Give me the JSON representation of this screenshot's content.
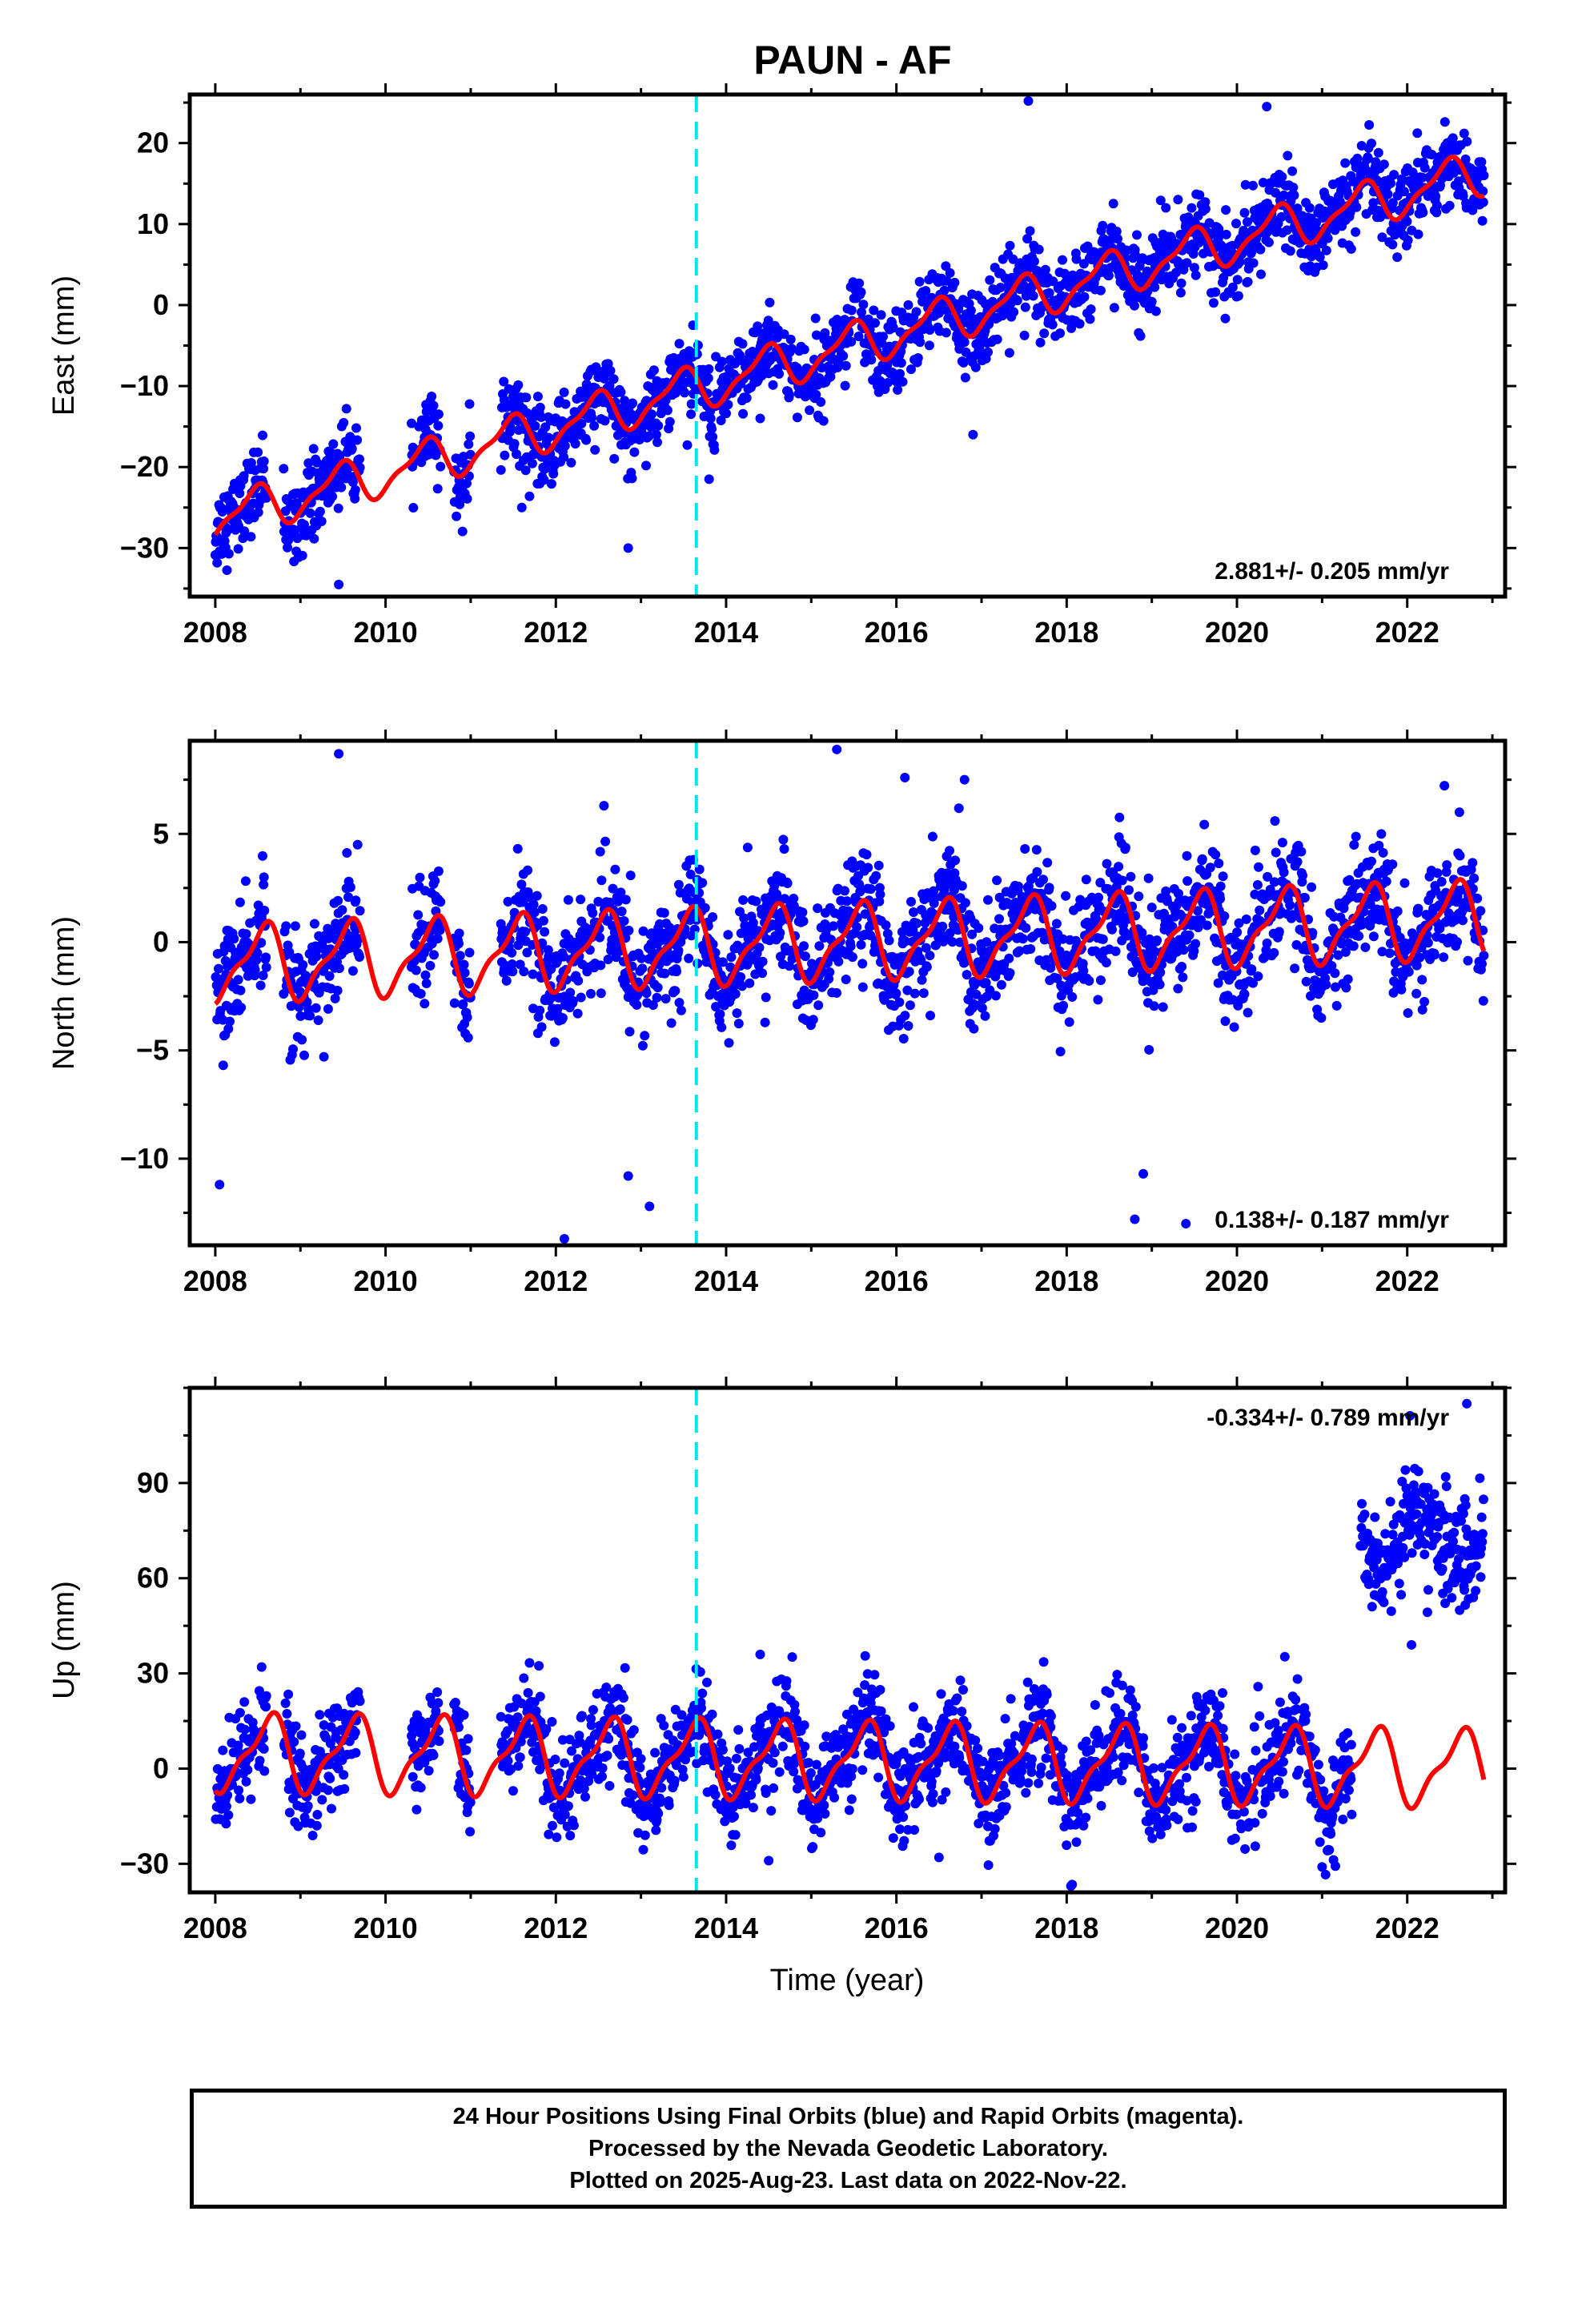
{
  "title": "PAUN - AF",
  "colors": {
    "data": "#0000ff",
    "model": "#ff0000",
    "event_line": "#00e5ee",
    "axes": "#000000"
  },
  "chart_data": [
    {
      "type": "scatter",
      "panel": "east",
      "ylabel": "East (mm)",
      "xlabel": "",
      "xlim": [
        2007.7,
        2023.15
      ],
      "ylim": [
        -36,
        26
      ],
      "xticks": [
        2008,
        2010,
        2012,
        2014,
        2016,
        2018,
        2020,
        2022
      ],
      "yticks": [
        -30,
        -20,
        -10,
        0,
        10,
        20
      ],
      "rate_label": "2.881+/- 0.205 mm/yr",
      "rate_label_position": "bottom-right",
      "event_line_x": 2013.65,
      "trend": {
        "t0": 2008.0,
        "y0": -26.5,
        "rate": 2.881
      },
      "seasonal": {
        "amplitude": 2.5,
        "phase_year": 0.45
      },
      "data_gaps": [
        [
          2008.6,
          2008.8
        ],
        [
          2009.7,
          2010.3
        ],
        [
          2010.65,
          2010.8
        ],
        [
          2011.0,
          2011.35
        ]
      ],
      "series": [
        {
          "name": "",
          "kind": "points",
          "x_start": 2008.0,
          "x_end": 2022.9,
          "scatter_mm": 2.4
        },
        {
          "name": "",
          "kind": "model_curve"
        }
      ],
      "outliers": [
        [
          2009.45,
          -34.5
        ],
        [
          2012.85,
          -30.0
        ],
        [
          2017.55,
          25.2
        ],
        [
          2020.35,
          24.5
        ],
        [
          2013.8,
          -21.5
        ],
        [
          2014.4,
          -14
        ],
        [
          2016.9,
          -16
        ],
        [
          2011.6,
          -25
        ]
      ]
    },
    {
      "type": "scatter",
      "panel": "north",
      "ylabel": "North (mm)",
      "xlabel": "",
      "xlim": [
        2007.7,
        2023.15
      ],
      "ylim": [
        -14,
        9.3
      ],
      "xticks": [
        2008,
        2010,
        2012,
        2014,
        2016,
        2018,
        2020,
        2022
      ],
      "yticks": [
        -10,
        -5,
        0,
        5
      ],
      "rate_label": "0.138+/- 0.187 mm/yr",
      "rate_label_position": "bottom-right",
      "event_line_x": 2013.65,
      "trend": {
        "t0": 2008.0,
        "y0": -1.0,
        "rate": 0.138
      },
      "seasonal": {
        "amplitude": 1.6,
        "phase_year": 0.55
      },
      "data_gaps": [
        [
          2008.6,
          2008.8
        ],
        [
          2009.7,
          2010.3
        ],
        [
          2010.65,
          2010.8
        ],
        [
          2011.0,
          2011.35
        ]
      ],
      "series": [
        {
          "name": "",
          "kind": "points",
          "x_start": 2008.0,
          "x_end": 2022.9,
          "scatter_mm": 1.3
        },
        {
          "name": "",
          "kind": "model_curve"
        }
      ],
      "outliers": [
        [
          2009.45,
          8.7
        ],
        [
          2015.3,
          8.9
        ],
        [
          2008.05,
          -11.2
        ],
        [
          2012.1,
          -13.7
        ],
        [
          2018.8,
          -12.8
        ],
        [
          2019.4,
          -13.0
        ],
        [
          2013.1,
          -12.2
        ],
        [
          2012.85,
          -10.8
        ],
        [
          2016.1,
          7.6
        ],
        [
          2016.8,
          7.5
        ],
        [
          2018.9,
          -10.7
        ]
      ]
    },
    {
      "type": "scatter",
      "panel": "up",
      "ylabel": "Up (mm)",
      "xlabel": "Time (year)",
      "xlim": [
        2007.7,
        2023.15
      ],
      "ylim": [
        -39,
        120
      ],
      "xticks": [
        2008,
        2010,
        2012,
        2014,
        2016,
        2018,
        2020,
        2022
      ],
      "yticks": [
        -30,
        0,
        30,
        60,
        90
      ],
      "rate_label": "-0.334+/- 0.789 mm/yr",
      "rate_label_position": "top-right",
      "event_line_x": 2013.65,
      "trend": {
        "t0": 2008.0,
        "y0": 5.0,
        "rate": -0.334
      },
      "seasonal": {
        "amplitude": 11.0,
        "phase_year": 0.62
      },
      "data_gaps": [
        [
          2008.6,
          2008.8
        ],
        [
          2009.7,
          2010.3
        ],
        [
          2010.65,
          2010.8
        ],
        [
          2011.0,
          2011.35
        ],
        [
          2021.35,
          2021.45
        ]
      ],
      "offset_segment": {
        "x_start": 2021.45,
        "x_end": 2022.9,
        "level": 73,
        "scatter_mm": 9
      },
      "series": [
        {
          "name": "",
          "kind": "points",
          "x_start": 2008.0,
          "x_end": 2021.35,
          "scatter_mm": 7.5
        },
        {
          "name": "",
          "kind": "model_curve"
        }
      ],
      "outliers": [
        [
          2014.4,
          36
        ],
        [
          2018.05,
          -37
        ],
        [
          2022.7,
          115
        ],
        [
          2021.0,
          -31
        ],
        [
          2016.5,
          -28
        ],
        [
          2014.5,
          -29
        ],
        [
          2022.05,
          39
        ]
      ]
    }
  ],
  "footer": {
    "line1": "24 Hour Positions Using Final Orbits (blue) and Rapid Orbits (magenta).",
    "line2": "Processed by the Nevada Geodetic Laboratory.",
    "line3": "Plotted on 2025-Aug-23. Last data on 2022-Nov-22."
  }
}
